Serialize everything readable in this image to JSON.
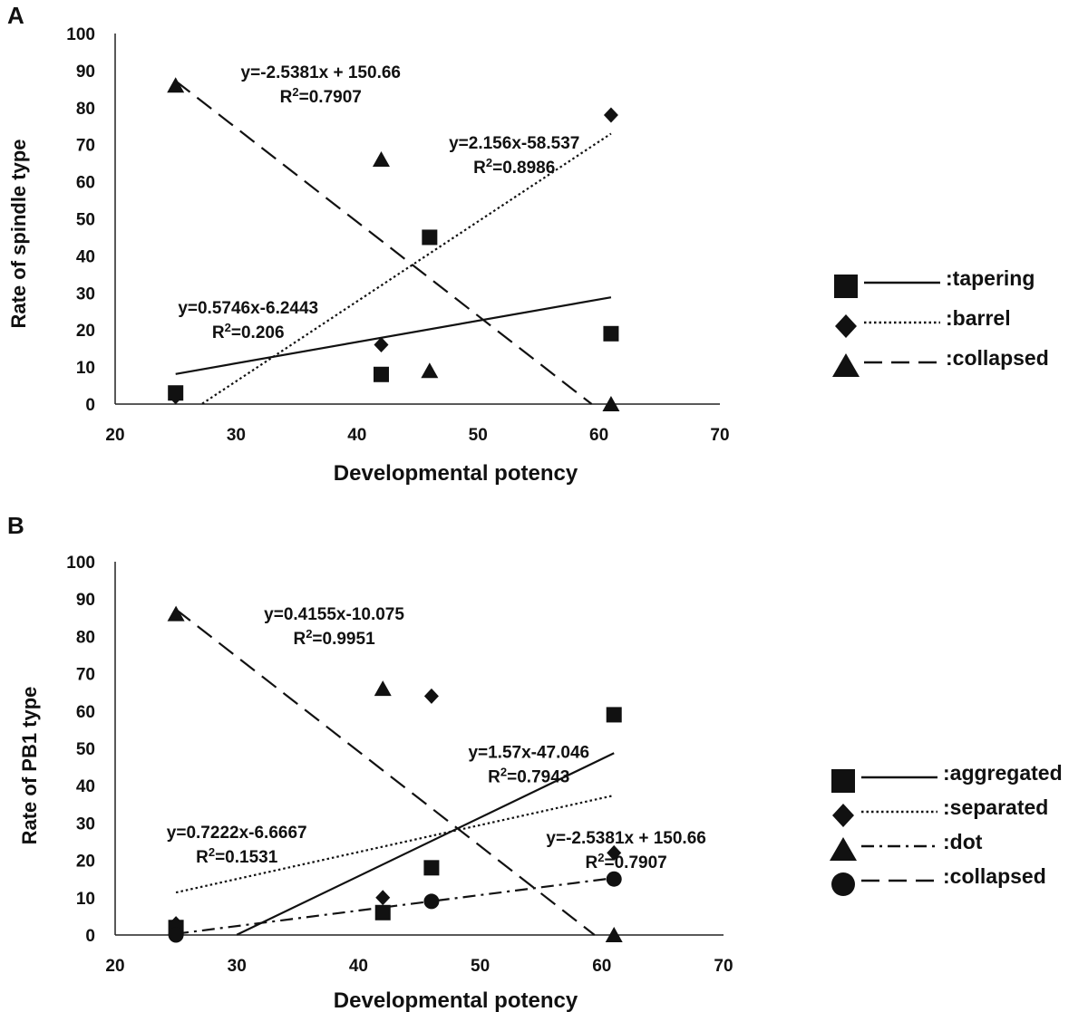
{
  "chart_data": [
    {
      "panel": "A",
      "type": "scatter",
      "xlabel": "Developmental potency",
      "ylabel": "Rate of spindle type",
      "xlim": [
        20,
        70
      ],
      "ylim": [
        0,
        100
      ],
      "xticks": [
        20,
        30,
        40,
        50,
        60,
        70
      ],
      "yticks": [
        0,
        10,
        20,
        30,
        40,
        50,
        60,
        70,
        80,
        90,
        100
      ],
      "series": [
        {
          "name": ":tapering",
          "marker": "square",
          "line": "solid",
          "points": [
            [
              25,
              3
            ],
            [
              42,
              8
            ],
            [
              46,
              45
            ],
            [
              61,
              19
            ]
          ],
          "trend": {
            "slope": 0.5746,
            "intercept": -6.2443,
            "x_range": [
              25,
              61
            ]
          }
        },
        {
          "name": ":barrel",
          "marker": "diamond",
          "line": "dotted",
          "points": [
            [
              25,
              2
            ],
            [
              42,
              16
            ],
            [
              61,
              78
            ]
          ],
          "trend": {
            "slope": 2.156,
            "intercept": -58.537,
            "x_range": [
              27.2,
              61
            ]
          }
        },
        {
          "name": ":collapsed",
          "marker": "triangle",
          "line": "dashed",
          "points": [
            [
              25,
              86
            ],
            [
              42,
              66
            ],
            [
              46,
              9
            ],
            [
              61,
              0
            ]
          ],
          "trend": {
            "slope": -2.5381,
            "intercept": 150.66,
            "x_range": [
              25,
              59.4
            ]
          }
        }
      ],
      "annotations": [
        {
          "line1": "y=-2.5381x + 150.66",
          "line2": "R2=0.7907",
          "at": [
            37,
            88
          ]
        },
        {
          "line1": "y=2.156x-58.537",
          "line2": "R2=0.8986",
          "at": [
            53,
            69
          ]
        },
        {
          "line1": "y=0.5746x-6.2443",
          "line2": "R2=0.206",
          "at": [
            31,
            24.5
          ]
        }
      ]
    },
    {
      "panel": "B",
      "type": "scatter",
      "xlabel": "Developmental potency",
      "ylabel": "Rate of  PB1 type",
      "xlim": [
        20,
        70
      ],
      "ylim": [
        0,
        100
      ],
      "xticks": [
        20,
        30,
        40,
        50,
        60,
        70
      ],
      "yticks": [
        0,
        10,
        20,
        30,
        40,
        50,
        60,
        70,
        80,
        90,
        100
      ],
      "series": [
        {
          "name": ":aggregated",
          "marker": "square",
          "line": "solid",
          "points": [
            [
              25,
              2
            ],
            [
              42,
              6
            ],
            [
              46,
              18
            ],
            [
              61,
              59
            ]
          ],
          "trend": {
            "slope": 1.57,
            "intercept": -47.046,
            "x_range": [
              30,
              61
            ]
          }
        },
        {
          "name": ":separated",
          "marker": "diamond",
          "line": "dotted",
          "points": [
            [
              25,
              3
            ],
            [
              42,
              10
            ],
            [
              46,
              64
            ],
            [
              61,
              22
            ]
          ],
          "trend": {
            "slope": 0.7222,
            "intercept": -6.6667,
            "x_range": [
              25,
              61
            ]
          }
        },
        {
          "name": ":dot",
          "marker": "triangle",
          "line": "dashdot",
          "points": [
            [
              25,
              86
            ],
            [
              42,
              66
            ],
            [
              61,
              0
            ]
          ],
          "trend": {
            "slope": 0.4155,
            "intercept": -10.075,
            "x_range": [
              25,
              61
            ]
          }
        },
        {
          "name": ":collapsed",
          "marker": "circle",
          "line": "dashed",
          "points": [
            [
              25,
              0
            ],
            [
              46,
              9
            ],
            [
              61,
              15
            ]
          ],
          "trend": {
            "slope": -2.5381,
            "intercept": 150.66,
            "x_range": [
              25,
              59.4
            ]
          }
        }
      ],
      "annotations": [
        {
          "line1": "y=0.4155x-10.075",
          "line2": "R2=0.9951",
          "at": [
            38,
            84.5
          ]
        },
        {
          "line1": "y=1.57x-47.046",
          "line2": "R2=0.7943",
          "at": [
            54,
            47.5
          ]
        },
        {
          "line1": "y=0.7222x-6.6667",
          "line2": "R2=0.1531",
          "at": [
            30,
            26
          ]
        },
        {
          "line1": "y=-2.5381x + 150.66",
          "line2": "R2=0.7907",
          "at": [
            62,
            24.5
          ]
        }
      ]
    }
  ]
}
